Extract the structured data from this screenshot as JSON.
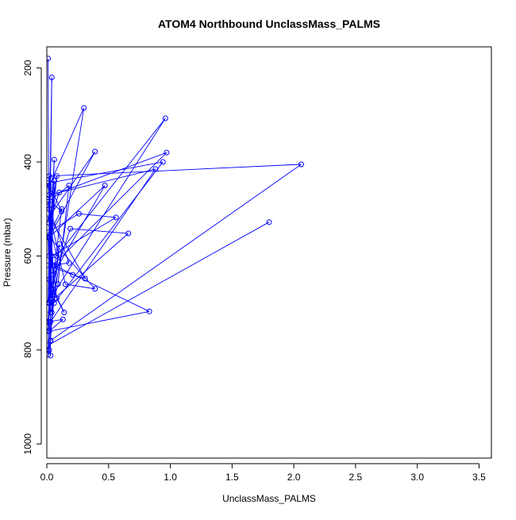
{
  "chart_data": {
    "type": "line",
    "title": "ATOM4 Northbound UnclassMass_PALMS",
    "xlabel": "UnclassMass_PALMS",
    "ylabel": "Pressure (mbar)",
    "xlim": [
      0,
      3.6
    ],
    "ylim": [
      1030,
      155
    ],
    "y_reversed": true,
    "x_ticks": [
      0,
      0.5,
      1,
      1.5,
      2,
      2.5,
      3,
      3.5
    ],
    "x_tick_labels": [
      "0.0",
      "0.5",
      "1.0",
      "1.5",
      "2.0",
      "2.5",
      "3.0",
      "3.5"
    ],
    "y_ticks": [
      200,
      400,
      600,
      800,
      1000
    ],
    "y_tick_labels": [
      "200",
      "400",
      "600",
      "800",
      "1000"
    ],
    "grid": false,
    "legend": "none",
    "color": "#0000ff",
    "series": [
      {
        "type": "line",
        "x": [
          0.01,
          0.02,
          0.04,
          0.01,
          0.06,
          0.02,
          0.08,
          0.03,
          0.05,
          0.01,
          0.12,
          0.02,
          0.3,
          0.04,
          0.02,
          0.39,
          0.01,
          0.08,
          0.96,
          0.03,
          0.02,
          0.1,
          0.97,
          0.05,
          0.01,
          0.94,
          0.06,
          0.02,
          0.88,
          0.03,
          0.01,
          0.12,
          0.04,
          0.02,
          2.06,
          0.03,
          0.02,
          0.47,
          0.05,
          0.01,
          0.18,
          0.09,
          0.03,
          0.01,
          0.26,
          0.56,
          0.04,
          0.02,
          0.66,
          0.19,
          0.03,
          0.06,
          0.01,
          0.02,
          0.1,
          0.04,
          0.02,
          0.18,
          0.01,
          0.21,
          0.31,
          0.03,
          0.15,
          0.39,
          0.02,
          0.08,
          0.14,
          0.05,
          0.01,
          0.13,
          0.02,
          0.83,
          0.06,
          0.03,
          0.01,
          0.02,
          0.01,
          0.02,
          0.03,
          0.01,
          1.8
        ],
        "y": [
          180,
          650,
          220,
          700,
          395,
          600,
          430,
          520,
          460,
          480,
          505,
          450,
          285,
          720,
          560,
          378,
          520,
          600,
          307,
          690,
          530,
          465,
          380,
          620,
          445,
          400,
          700,
          470,
          415,
          740,
          560,
          500,
          670,
          430,
          405,
          780,
          560,
          450,
          640,
          485,
          450,
          660,
          720,
          550,
          510,
          518,
          600,
          700,
          552,
          542,
          670,
          440,
          740,
          800,
          575,
          690,
          500,
          615,
          620,
          640,
          648,
          520,
          660,
          670,
          560,
          690,
          720,
          670,
          740,
          735,
          760,
          718,
          620,
          780,
          810,
          700,
          760,
          740,
          812,
          790,
          528
        ]
      }
    ]
  }
}
